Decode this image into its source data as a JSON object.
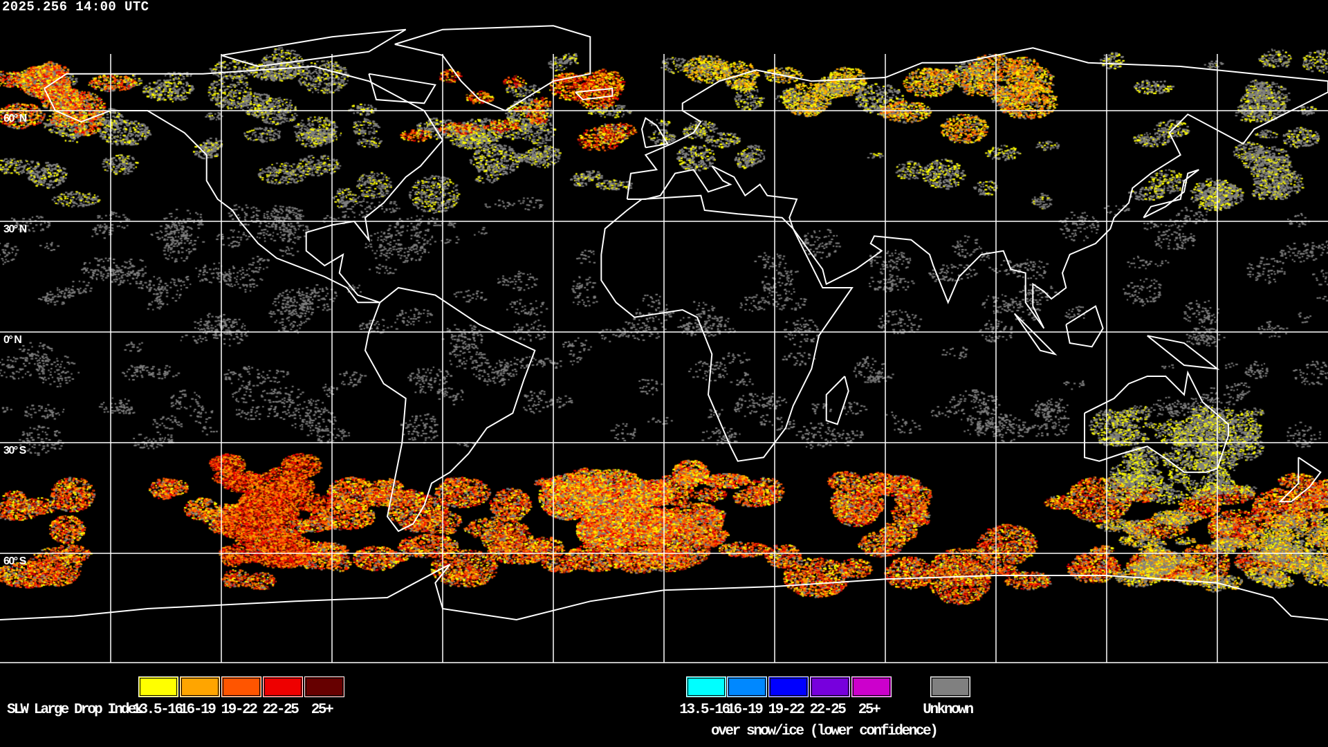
{
  "header": {
    "timestamp": "2025.256 14:00 UTC"
  },
  "map": {
    "projection": "equirectangular",
    "lat_labels": [
      "60° N",
      "30° N",
      "0° N",
      "30° S",
      "60° S"
    ],
    "coastline_color": "#ffffff",
    "grid_color": "#ffffff"
  },
  "legend": {
    "title": "SLW Large Drop Index",
    "primary": [
      {
        "label": "13.5-16",
        "color": "#ffff00"
      },
      {
        "label": "16-19",
        "color": "#ffa500"
      },
      {
        "label": "19-22",
        "color": "#ff5500"
      },
      {
        "label": "22-25",
        "color": "#ee0000"
      },
      {
        "label": "25+",
        "color": "#660000"
      }
    ],
    "snow_ice": [
      {
        "label": "13.5-16",
        "color": "#00ffff"
      },
      {
        "label": "16-19",
        "color": "#0088ff"
      },
      {
        "label": "19-22",
        "color": "#0000ff"
      },
      {
        "label": "22-25",
        "color": "#7700dd"
      },
      {
        "label": "25+",
        "color": "#cc00cc"
      }
    ],
    "snow_ice_caption": "over snow/ice (lower confidence)",
    "unknown": {
      "label": "Unknown",
      "color": "#808080"
    }
  }
}
